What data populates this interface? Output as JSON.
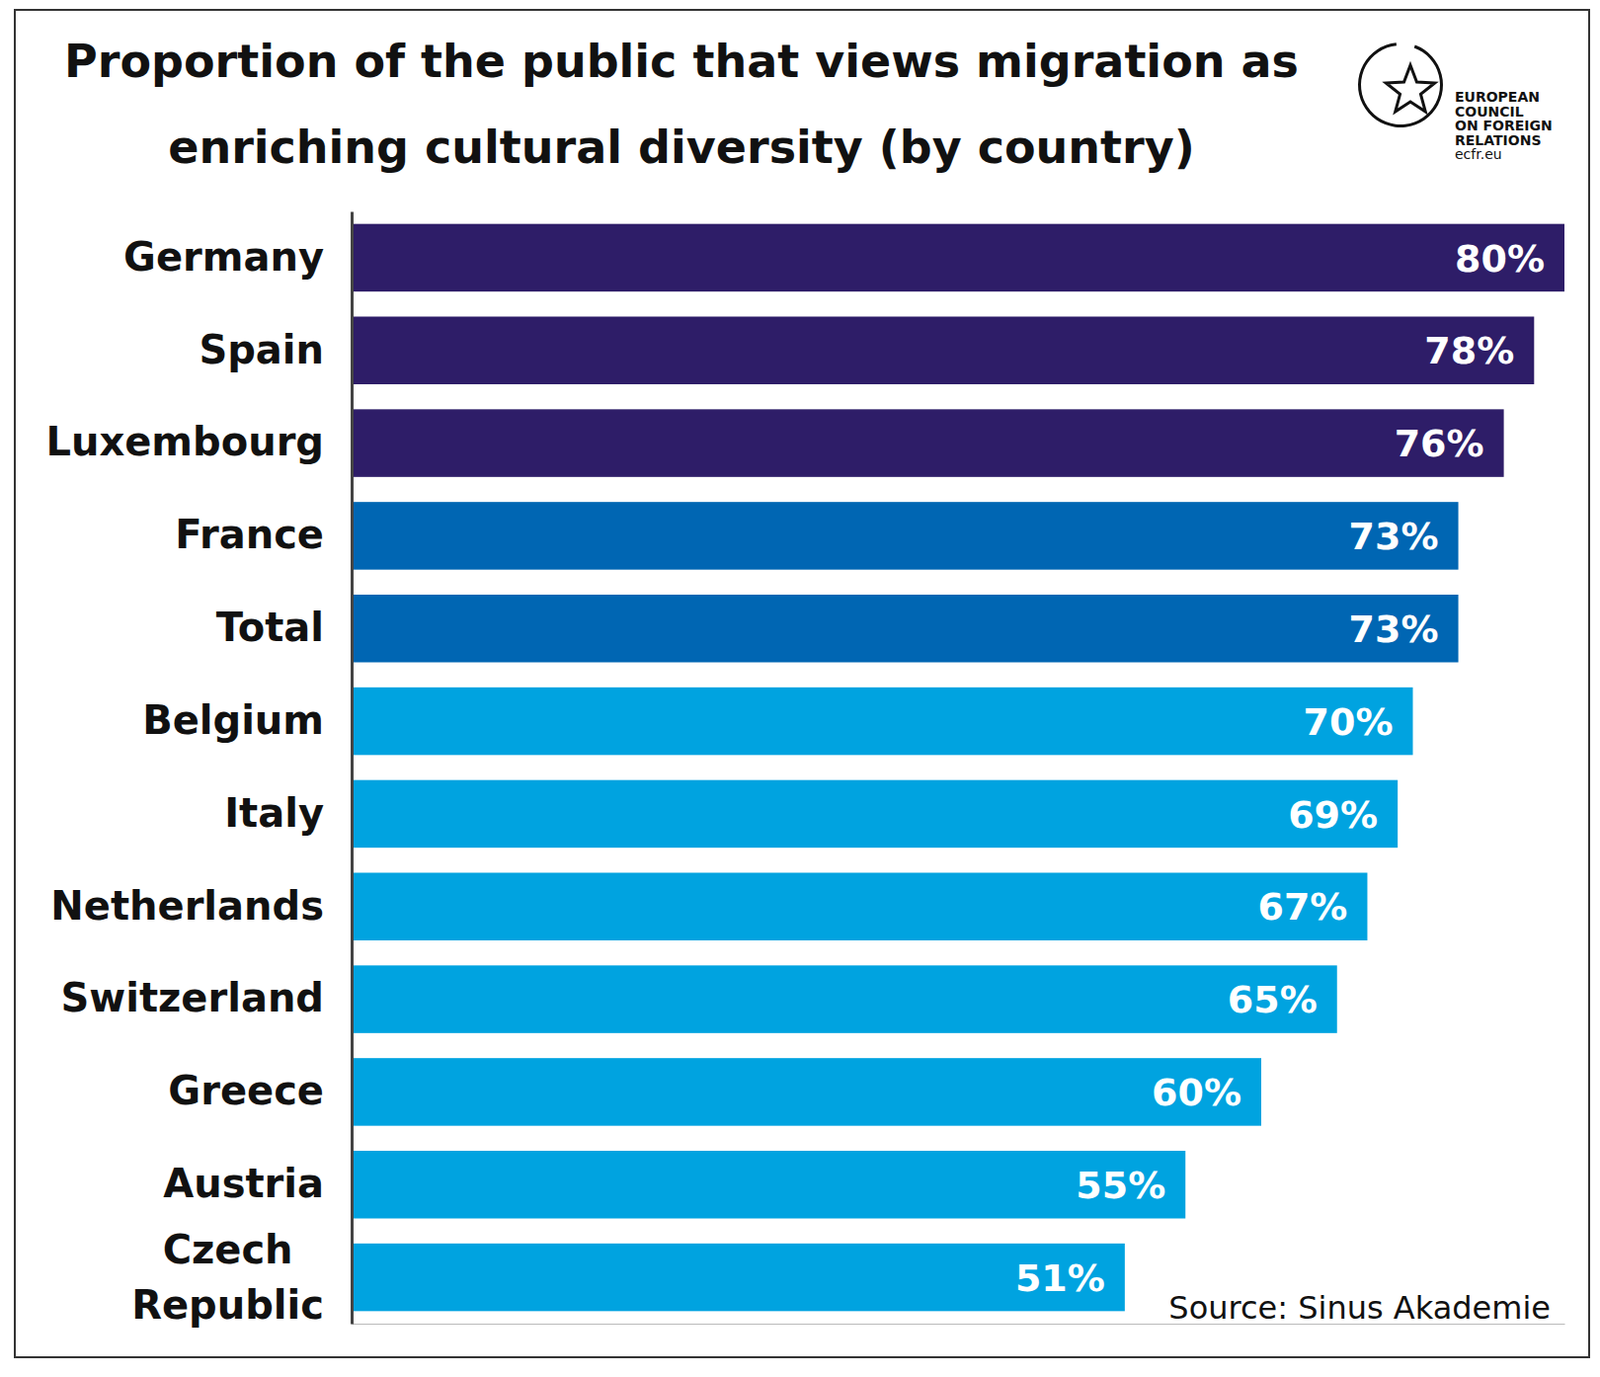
{
  "chart_data": {
    "type": "bar",
    "orientation": "horizontal",
    "title": "Proportion of the public that views migration as enriching cultural diversity (by country)",
    "categories": [
      "Germany",
      "Spain",
      "Luxembourg",
      "France",
      "Total",
      "Belgium",
      "Italy",
      "Netherlands",
      "Switzerland",
      "Greece",
      "Austria",
      "Czech Republic"
    ],
    "values": [
      80,
      78,
      76,
      73,
      73,
      70,
      69,
      67,
      65,
      60,
      55,
      51
    ],
    "value_labels": [
      "80%",
      "78%",
      "76%",
      "73%",
      "73%",
      "70%",
      "69%",
      "67%",
      "65%",
      "60%",
      "55%",
      "51%"
    ],
    "colors": [
      "#2e1d68",
      "#2e1d68",
      "#2e1d68",
      "#0066b3",
      "#0066b3",
      "#00a3e0",
      "#00a3e0",
      "#00a3e0",
      "#00a3e0",
      "#00a3e0",
      "#00a3e0",
      "#00a3e0"
    ],
    "xlim": [
      0,
      80
    ],
    "data_labels": true,
    "tick_labels": "y",
    "grid": false,
    "source": "Source: Sinus Akademie",
    "logo_text": [
      "EUROPEAN",
      "COUNCIL",
      "ON FOREIGN",
      "RELATIONS",
      "ecfr.eu"
    ]
  }
}
